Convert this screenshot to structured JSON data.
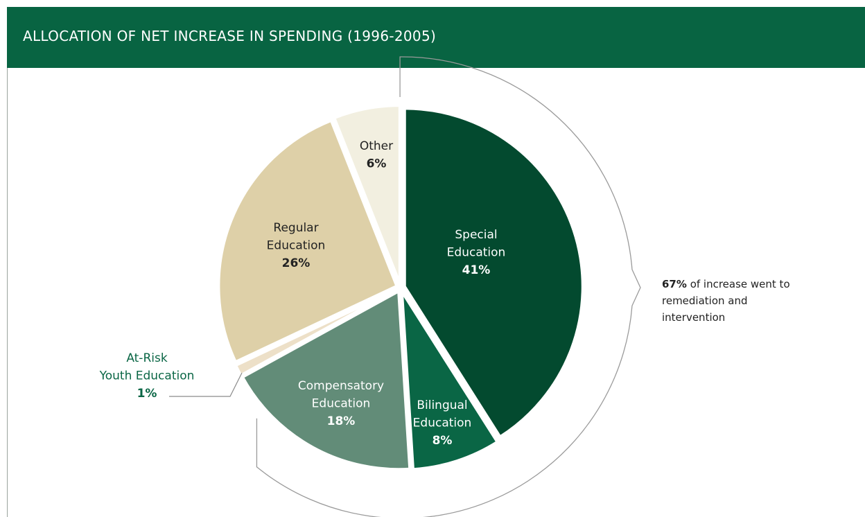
{
  "chart_data": {
    "type": "pie",
    "title": "ALLOCATION OF NET INCREASE IN SPENDING (1996-2005)",
    "slices": [
      {
        "label": [
          "Special",
          "Education"
        ],
        "value": 41,
        "value_label": "41%",
        "color": "#034a2f",
        "text_color": "#ffffff"
      },
      {
        "label": [
          "Bilingual",
          "Education"
        ],
        "value": 8,
        "value_label": "8%",
        "color": "#0a6645",
        "text_color": "#ffffff"
      },
      {
        "label": [
          "Compensatory",
          "Education"
        ],
        "value": 18,
        "value_label": "18%",
        "color": "#628c78",
        "text_color": "#ffffff"
      },
      {
        "label": [
          "At-Risk",
          "Youth Education"
        ],
        "value": 1,
        "value_label": "1%",
        "color": "#ede0c8",
        "text_color": "#0a6645"
      },
      {
        "label": [
          "Regular",
          "Education"
        ],
        "value": 26,
        "value_label": "26%",
        "color": "#ded0a8",
        "text_color": "#222222"
      },
      {
        "label": [
          "Other"
        ],
        "value": 6,
        "value_label": "6%",
        "color": "#f2efe0",
        "text_color": "#222222"
      }
    ],
    "callout": {
      "bold": "67%",
      "text": "of increase went to remediation and intervention"
    }
  }
}
